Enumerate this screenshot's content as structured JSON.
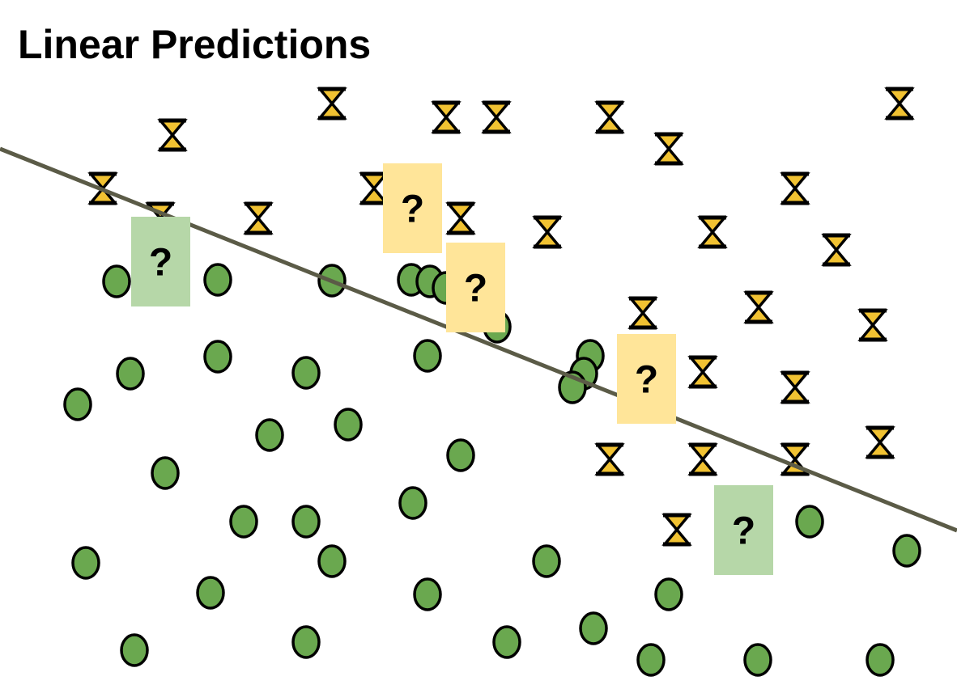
{
  "title": "Linear Predictions",
  "colors": {
    "circle_fill": "#6aa84f",
    "hourglass_fill": "#f1c232",
    "outline": "#000000",
    "line": "#5b5b47",
    "query_green": "#b6d7a8",
    "query_yellow": "#ffe599"
  },
  "queries": [
    {
      "label": "?",
      "predicted": "circle"
    },
    {
      "label": "?",
      "predicted": "hourglass"
    },
    {
      "label": "?",
      "predicted": "hourglass"
    },
    {
      "label": "?",
      "predicted": "hourglass"
    },
    {
      "label": "?",
      "predicted": "circle"
    }
  ]
}
